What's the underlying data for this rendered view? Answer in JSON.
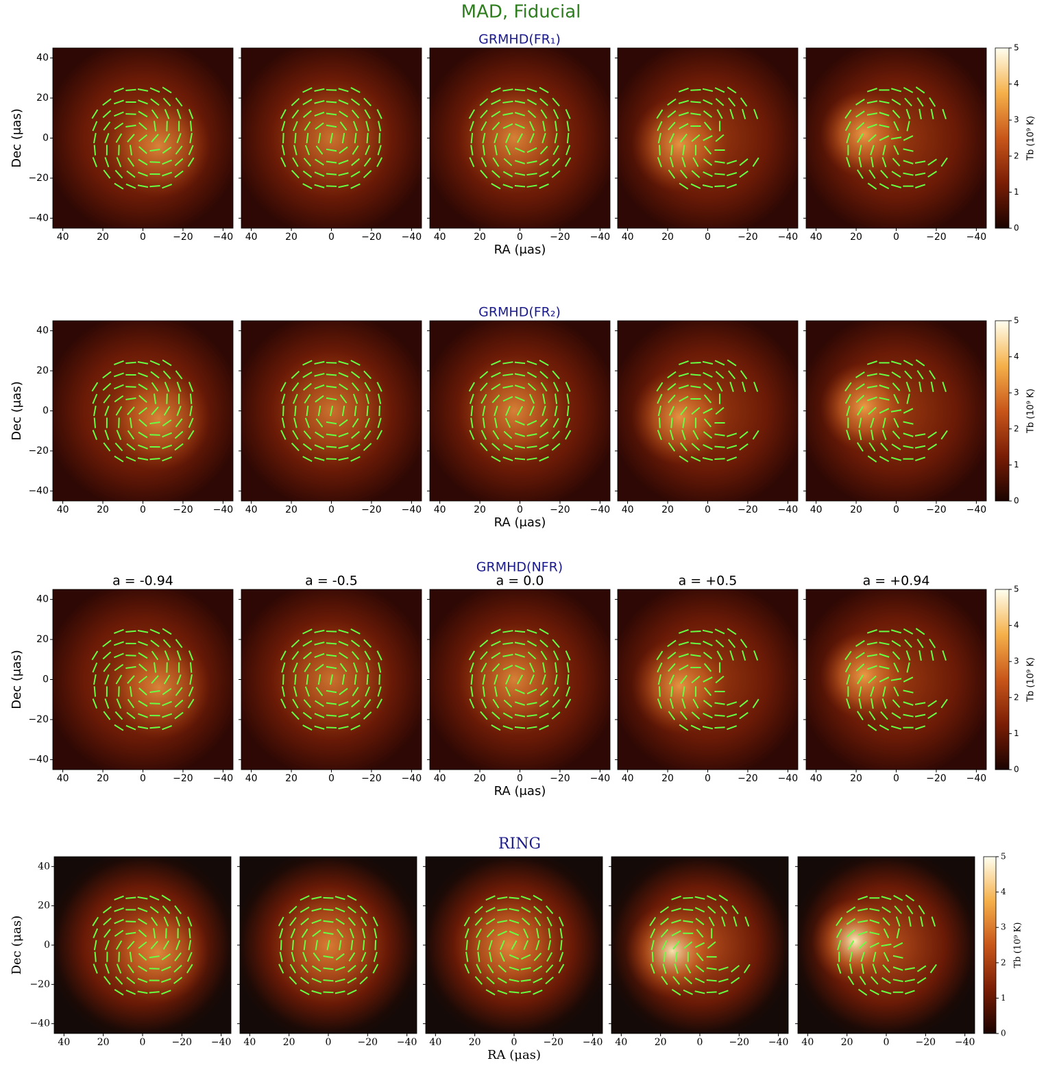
{
  "title": "MAD, Fiducial",
  "chart_data": [
    {
      "type": "image",
      "title": "GRMHD(FR₁)",
      "xlabel": "RA (μas)",
      "ylabel": "Dec (μas)",
      "xlim": [
        45,
        -45
      ],
      "ylim": [
        -45,
        45
      ],
      "xticks": [
        40,
        20,
        0,
        {
          "value": -20,
          "label": "−20"
        },
        {
          "value": -40,
          "label": "−40"
        }
      ],
      "yticks": [
        40,
        20,
        0,
        {
          "value": -20,
          "label": "−20"
        },
        {
          "value": -40,
          "label": "−40"
        }
      ],
      "colorbar": {
        "label": "Tb (10⁹ K)",
        "lim": [
          0,
          5
        ],
        "ticks": [
          0,
          1,
          2,
          3,
          4,
          5
        ]
      }
    },
    {
      "type": "image",
      "title": "GRMHD(FR₂)",
      "xlabel": "RA (μas)",
      "ylabel": "Dec (μas)",
      "xlim": [
        45,
        -45
      ],
      "ylim": [
        -45,
        45
      ],
      "xticks": [
        40,
        20,
        0,
        {
          "value": -20,
          "label": "−20"
        },
        {
          "value": -40,
          "label": "−40"
        }
      ],
      "yticks": [
        40,
        20,
        0,
        {
          "value": -20,
          "label": "−20"
        },
        {
          "value": -40,
          "label": "−40"
        }
      ],
      "colorbar": {
        "label": "Tb (10⁹ K)",
        "lim": [
          0,
          5
        ],
        "ticks": [
          0,
          1,
          2,
          3,
          4,
          5
        ]
      }
    },
    {
      "type": "image",
      "title": "GRMHD(NFR)",
      "panel_titles": [
        "a = -0.94",
        "a = -0.5",
        "a = 0.0",
        "a = +0.5",
        "a = +0.94"
      ],
      "xlabel": "RA (μas)",
      "ylabel": "Dec (μas)",
      "xlim": [
        45,
        -45
      ],
      "ylim": [
        -45,
        45
      ],
      "xticks": [
        40,
        20,
        0,
        {
          "value": -20,
          "label": "−20"
        },
        {
          "value": -40,
          "label": "−40"
        }
      ],
      "yticks": [
        40,
        20,
        0,
        {
          "value": -20,
          "label": "−20"
        },
        {
          "value": -40,
          "label": "−40"
        }
      ],
      "colorbar": {
        "label": "Tb (10⁹ K)",
        "lim": [
          0,
          5
        ],
        "ticks": [
          0,
          1,
          2,
          3,
          4,
          5
        ]
      }
    },
    {
      "type": "image",
      "title": "RING",
      "xlabel": "RA (μas)",
      "ylabel": "Dec (μas)",
      "xlim": [
        45,
        -45
      ],
      "ylim": [
        -45,
        45
      ],
      "xticks": [
        40,
        20,
        0,
        {
          "value": -20,
          "label": "−20"
        },
        {
          "value": -40,
          "label": "−40"
        }
      ],
      "yticks": [
        40,
        20,
        0,
        {
          "value": -20,
          "label": "−20"
        },
        {
          "value": -40,
          "label": "−40"
        }
      ],
      "colorbar": {
        "label": "Tb (10⁹ K)",
        "lim": [
          0,
          5
        ],
        "ticks": [
          0,
          1,
          2,
          3,
          4,
          5
        ]
      }
    }
  ]
}
